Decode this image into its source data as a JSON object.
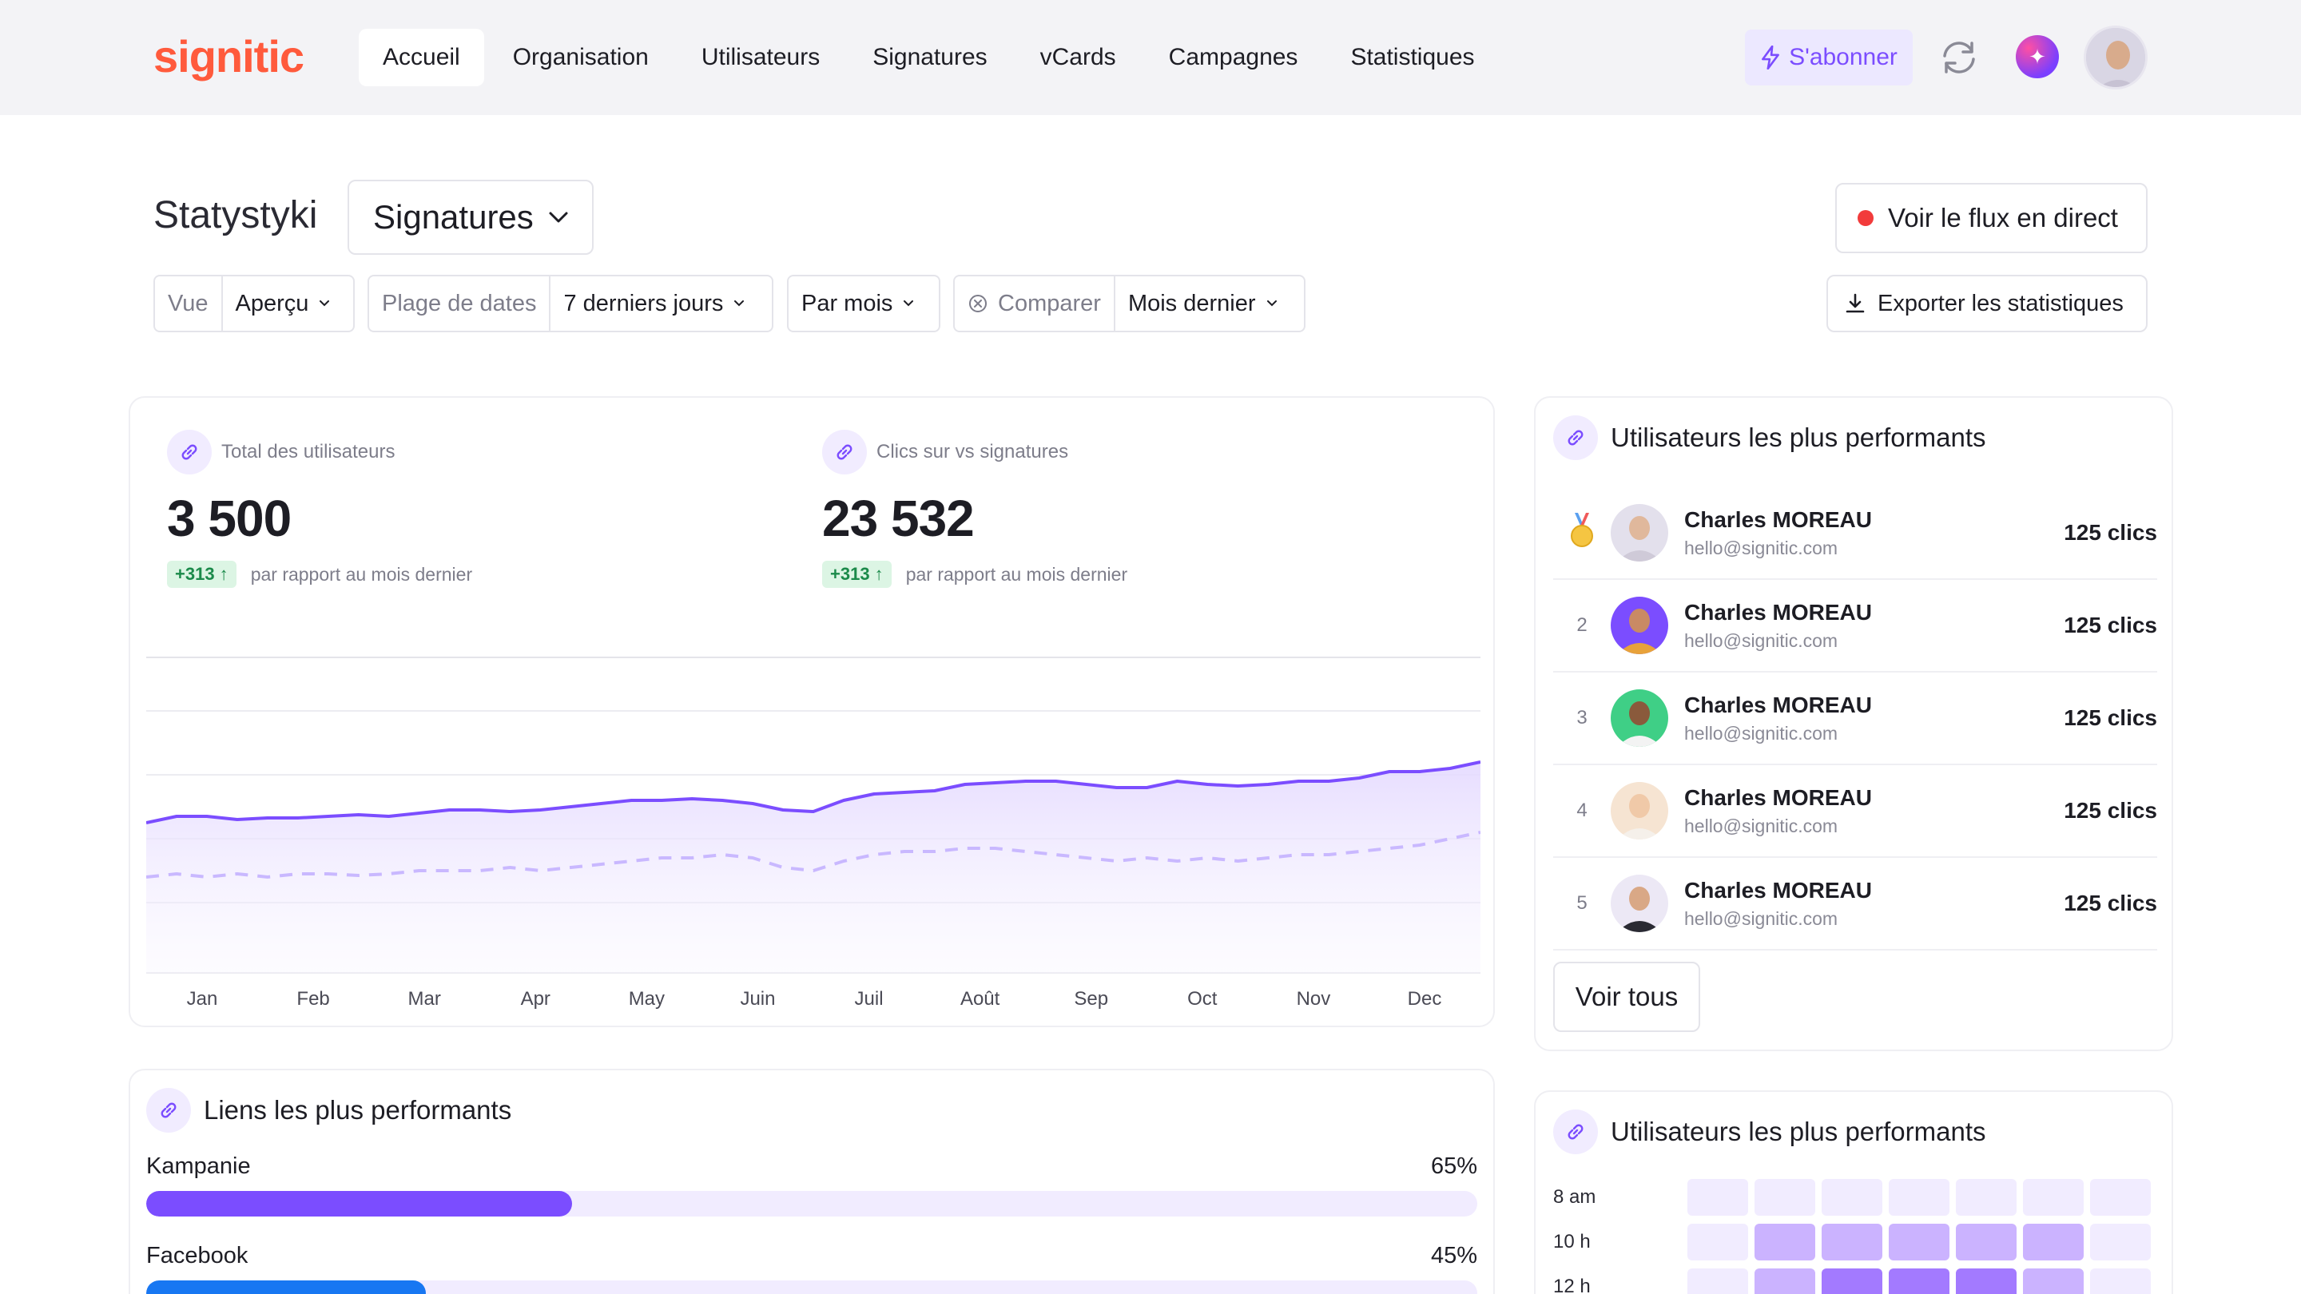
{
  "nav": {
    "logo": "signitic",
    "items": [
      "Accueil",
      "Organisation",
      "Utilisateurs",
      "Signatures",
      "vCards",
      "Campagnes",
      "Statistiques"
    ],
    "active_index": 0,
    "subscribe_label": "S'abonner"
  },
  "header": {
    "title": "Statystyki",
    "type_select": "Signatures",
    "live_label": "Voir le flux en direct",
    "export_label": "Exporter les statistiques"
  },
  "filters": {
    "view_label": "Vue",
    "view_value": "Aperçu",
    "range_label": "Plage de dates",
    "range_value": "7 derniers jours",
    "period_value": "Par mois",
    "compare_label": "Comparer",
    "compare_value": "Mois dernier"
  },
  "stats": [
    {
      "label": "Total des utilisateurs",
      "value": "3 500",
      "delta": "+313",
      "delta_note": "par rapport au mois dernier"
    },
    {
      "label": "Clics sur vs signatures",
      "value": "23 532",
      "delta": "+313",
      "delta_note": "par rapport au mois dernier"
    }
  ],
  "chart_data": {
    "type": "area",
    "categories": [
      "Jan",
      "Feb",
      "Mar",
      "Apr",
      "May",
      "Juin",
      "Juil",
      "Août",
      "Sep",
      "Oct",
      "Nov",
      "Dec"
    ],
    "x": [
      0,
      1,
      2,
      3,
      4,
      5,
      6,
      7,
      8,
      9,
      10,
      11,
      12,
      13,
      14,
      15,
      16,
      17,
      18,
      19,
      20,
      21,
      22,
      23,
      24,
      25,
      26,
      27,
      28,
      29,
      30,
      31,
      32,
      33,
      34,
      35,
      36,
      37,
      38,
      39,
      40,
      41,
      42,
      43,
      44
    ],
    "series": [
      {
        "style": "solid",
        "color": "#7b4dff",
        "values": [
          47,
          49,
          49,
          48,
          48.5,
          48.5,
          49,
          49.5,
          49,
          50,
          51,
          51,
          50.5,
          51,
          52,
          53,
          54,
          54,
          54.5,
          54,
          53,
          51,
          50.5,
          54,
          56,
          56.5,
          57,
          59,
          59.5,
          60,
          60,
          59,
          58,
          58,
          60,
          59,
          58.5,
          59,
          60,
          60,
          61,
          63,
          63,
          64,
          66
        ]
      },
      {
        "style": "dashed",
        "color": "#c9b8ff",
        "values": [
          30,
          31,
          30,
          31,
          30,
          31,
          31,
          30.5,
          31,
          32,
          32,
          32,
          33,
          32,
          33,
          34,
          35,
          36,
          36,
          37,
          36,
          33,
          32,
          35,
          37,
          38,
          38,
          39,
          39,
          38,
          37,
          36,
          35,
          36,
          35,
          36,
          35,
          36,
          37,
          37,
          38,
          39,
          40,
          42,
          44
        ]
      }
    ],
    "ylim": [
      0,
      100
    ],
    "grid": true,
    "legend": "none"
  },
  "top_users": {
    "title": "Utilisateurs les plus performants",
    "rows": [
      {
        "rank": "",
        "medal": true,
        "name": "Charles MOREAU",
        "email": "hello@signitic.com",
        "clicks": "125 clics",
        "avatar_bg": "#e3e0ec",
        "skin": "#e0b89c",
        "shirt": "#cfcad8"
      },
      {
        "rank": "2",
        "medal": false,
        "name": "Charles MOREAU",
        "email": "hello@signitic.com",
        "clicks": "125 clics",
        "avatar_bg": "#7b4dff",
        "skin": "#c98a64",
        "shirt": "#e8a23a"
      },
      {
        "rank": "3",
        "medal": false,
        "name": "Charles MOREAU",
        "email": "hello@signitic.com",
        "clicks": "125 clics",
        "avatar_bg": "#3fcf86",
        "skin": "#8a5a3c",
        "shirt": "#f3f3f3"
      },
      {
        "rank": "4",
        "medal": false,
        "name": "Charles MOREAU",
        "email": "hello@signitic.com",
        "clicks": "125 clics",
        "avatar_bg": "#f6e4d2",
        "skin": "#f0c9a8",
        "shirt": "#f5f0ea"
      },
      {
        "rank": "5",
        "medal": false,
        "name": "Charles MOREAU",
        "email": "hello@signitic.com",
        "clicks": "125 clics",
        "avatar_bg": "#ece8f5",
        "skin": "#d9a886",
        "shirt": "#2a2a33"
      }
    ],
    "see_all_label": "Voir tous"
  },
  "top_links": {
    "title": "Liens les plus performants",
    "rows": [
      {
        "label": "Kampanie",
        "percent": "65%",
        "fraction": 0.32,
        "color": "#7b4dff"
      },
      {
        "label": "Facebook",
        "percent": "45%",
        "fraction": 0.21,
        "color": "#1877f2"
      }
    ]
  },
  "heatmap": {
    "title": "Utilisateurs les plus performants",
    "rows": [
      {
        "label": "8 am",
        "levels": [
          1,
          1,
          1,
          1,
          1,
          1,
          1
        ]
      },
      {
        "label": "10 h",
        "levels": [
          1,
          3,
          3,
          3,
          3,
          3,
          1
        ]
      },
      {
        "label": "12 h",
        "levels": [
          1,
          3,
          4,
          4,
          4,
          3,
          1
        ]
      }
    ],
    "colors": [
      "#ffffff",
      "#f1ecff",
      "#e2d6ff",
      "#cbb3ff",
      "#a37aff"
    ]
  }
}
